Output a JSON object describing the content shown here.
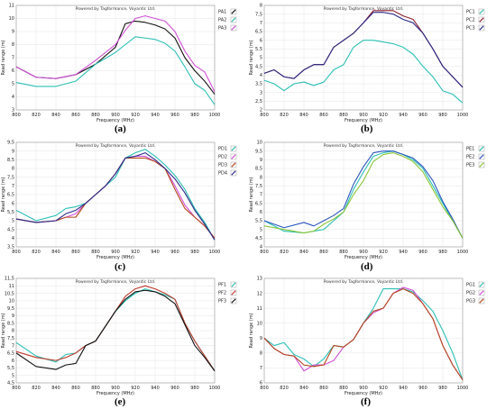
{
  "common": {
    "x_label": "Frequency (MHz)",
    "y_label": "Read range (m)",
    "note": "Powered by Tagformance, Voyantic Ltd."
  },
  "chart_data": [
    {
      "type": "line",
      "caption": "(a)",
      "x": [
        800,
        820,
        840,
        860,
        880,
        900,
        910,
        920,
        930,
        940,
        950,
        960,
        970,
        980,
        990,
        1000
      ],
      "xlim": [
        800,
        1000
      ],
      "ylim": [
        3,
        11
      ],
      "yticks": [
        3,
        4,
        5,
        6,
        7,
        8,
        9,
        10,
        11
      ],
      "series": [
        {
          "name": "PA1",
          "color": "#111111",
          "values": [
            6.3,
            5.5,
            5.4,
            5.7,
            6.5,
            7.8,
            9.6,
            9.8,
            9.7,
            9.5,
            9.2,
            8.5,
            7.0,
            6.0,
            5.2,
            4.2
          ]
        },
        {
          "name": "PA2",
          "color": "#2bbfb5",
          "values": [
            5.1,
            4.8,
            4.8,
            5.2,
            6.5,
            7.4,
            8.0,
            8.6,
            8.5,
            8.4,
            8.1,
            7.5,
            6.3,
            5.0,
            4.5,
            3.4
          ]
        },
        {
          "name": "PA3",
          "color": "#d04fd6",
          "values": [
            6.3,
            5.5,
            5.4,
            5.7,
            6.8,
            8.0,
            9.1,
            10.0,
            10.2,
            10.0,
            9.8,
            9.0,
            7.5,
            6.4,
            5.9,
            4.4
          ]
        }
      ]
    },
    {
      "type": "line",
      "caption": "(b)",
      "x": [
        800,
        810,
        820,
        830,
        840,
        850,
        860,
        870,
        880,
        890,
        900,
        910,
        920,
        930,
        940,
        950,
        960,
        970,
        980,
        990,
        1000
      ],
      "xlim": [
        800,
        1000
      ],
      "ylim": [
        2,
        8
      ],
      "yticks": [
        2,
        2.5,
        3,
        3.5,
        4,
        4.5,
        5,
        5.5,
        6,
        6.5,
        7,
        7.5,
        8
      ],
      "series": [
        {
          "name": "PC1",
          "color": "#2bbfb5",
          "values": [
            3.7,
            3.5,
            3.1,
            3.5,
            3.6,
            3.4,
            3.6,
            4.3,
            4.6,
            5.6,
            6.0,
            6.0,
            5.9,
            5.8,
            5.6,
            5.2,
            4.5,
            3.9,
            3.1,
            2.9,
            2.4
          ]
        },
        {
          "name": "PC2",
          "color": "#8b1c2c",
          "values": [
            4.1,
            4.3,
            3.9,
            3.8,
            4.3,
            4.6,
            4.6,
            5.6,
            6.0,
            6.4,
            7.0,
            7.7,
            7.7,
            7.7,
            7.4,
            7.2,
            6.4,
            5.5,
            4.5,
            3.9,
            3.3
          ]
        },
        {
          "name": "PC3",
          "color": "#2a2a8a",
          "values": [
            4.1,
            4.3,
            3.9,
            3.8,
            4.3,
            4.6,
            4.6,
            5.6,
            6.0,
            6.4,
            7.0,
            7.6,
            7.6,
            7.5,
            7.2,
            7.0,
            6.4,
            5.5,
            4.5,
            3.9,
            3.3
          ]
        }
      ]
    },
    {
      "type": "line",
      "caption": "(c)",
      "x": [
        800,
        820,
        840,
        850,
        860,
        870,
        880,
        890,
        900,
        910,
        920,
        930,
        940,
        950,
        960,
        970,
        980,
        990,
        1000
      ],
      "xlim": [
        800,
        1000
      ],
      "ylim": [
        3.5,
        9.5
      ],
      "yticks": [
        3.5,
        4,
        4.5,
        5,
        5.5,
        6,
        6.5,
        7,
        7.5,
        8,
        8.5,
        9,
        9.5
      ],
      "series": [
        {
          "name": "PD1",
          "color": "#2bbfb5",
          "values": [
            5.6,
            5.0,
            5.3,
            5.7,
            5.8,
            6.0,
            6.5,
            7.0,
            7.5,
            8.6,
            8.9,
            9.1,
            8.7,
            8.2,
            7.6,
            6.8,
            5.7,
            4.9,
            3.9
          ]
        },
        {
          "name": "PD2",
          "color": "#d04fd6",
          "values": [
            5.1,
            4.9,
            5.0,
            5.2,
            5.4,
            6.0,
            6.5,
            7.0,
            7.7,
            8.6,
            8.7,
            8.7,
            8.4,
            8.0,
            7.0,
            5.9,
            5.2,
            4.7,
            4.0
          ]
        },
        {
          "name": "PD3",
          "color": "#b5471a",
          "values": [
            5.1,
            4.9,
            5.0,
            5.2,
            5.2,
            6.0,
            6.5,
            7.0,
            7.7,
            8.6,
            8.6,
            8.6,
            8.4,
            8.0,
            6.8,
            5.7,
            5.2,
            4.7,
            4.0
          ]
        },
        {
          "name": "PD4",
          "color": "#2a2a8a",
          "values": [
            5.1,
            4.9,
            5.0,
            5.4,
            5.6,
            6.0,
            6.5,
            7.0,
            7.7,
            8.6,
            8.7,
            8.9,
            8.5,
            8.0,
            7.4,
            6.6,
            5.6,
            4.8,
            3.9
          ]
        }
      ]
    },
    {
      "type": "line",
      "caption": "(d)",
      "x": [
        800,
        820,
        840,
        850,
        860,
        870,
        880,
        890,
        900,
        910,
        920,
        930,
        940,
        950,
        960,
        970,
        980,
        990,
        1000
      ],
      "xlim": [
        800,
        1000
      ],
      "ylim": [
        4,
        10
      ],
      "yticks": [
        4,
        4.5,
        5,
        5.5,
        6,
        6.5,
        7,
        7.5,
        8,
        8.5,
        9,
        9.5,
        10
      ],
      "series": [
        {
          "name": "PE1",
          "color": "#2bbfb5",
          "values": [
            5.5,
            4.9,
            4.8,
            4.9,
            5.0,
            5.5,
            6.0,
            7.3,
            8.3,
            9.2,
            9.4,
            9.5,
            9.3,
            9.0,
            8.5,
            7.5,
            6.5,
            5.5,
            4.5
          ]
        },
        {
          "name": "PE2",
          "color": "#2a55c0",
          "values": [
            5.5,
            5.1,
            5.4,
            5.2,
            5.5,
            5.8,
            6.2,
            7.6,
            8.6,
            9.4,
            9.5,
            9.5,
            9.3,
            9.1,
            8.6,
            7.8,
            6.6,
            5.6,
            4.5
          ]
        },
        {
          "name": "PE3",
          "color": "#8bc53a",
          "values": [
            5.2,
            5.0,
            4.8,
            4.9,
            5.3,
            5.6,
            6.0,
            7.0,
            7.8,
            8.9,
            9.3,
            9.4,
            9.2,
            8.9,
            8.3,
            7.3,
            6.3,
            5.5,
            4.5
          ]
        }
      ]
    },
    {
      "type": "line",
      "caption": "(e)",
      "x": [
        800,
        820,
        840,
        850,
        860,
        870,
        880,
        890,
        900,
        910,
        920,
        930,
        940,
        950,
        960,
        970,
        980,
        990,
        1000
      ],
      "xlim": [
        800,
        1000
      ],
      "ylim": [
        4.5,
        11.5
      ],
      "yticks": [
        4.5,
        5,
        5.5,
        6,
        6.5,
        7,
        7.5,
        8,
        8.5,
        9,
        9.5,
        10,
        10.5,
        11,
        11.5
      ],
      "series": [
        {
          "name": "PF1",
          "color": "#2bbfb5",
          "values": [
            7.2,
            6.3,
            5.9,
            6.4,
            6.5,
            7.0,
            7.3,
            8.3,
            9.3,
            10.0,
            10.5,
            10.8,
            10.6,
            10.4,
            10.1,
            8.5,
            7.3,
            6.3,
            5.3
          ]
        },
        {
          "name": "PF2",
          "color": "#c0392b",
          "values": [
            6.6,
            6.2,
            6.0,
            6.2,
            6.5,
            7.0,
            7.3,
            8.3,
            9.3,
            10.3,
            10.8,
            11.0,
            10.8,
            10.5,
            10.1,
            8.5,
            7.3,
            6.3,
            5.3
          ]
        },
        {
          "name": "PF3",
          "color": "#111111",
          "values": [
            6.5,
            5.6,
            5.4,
            5.7,
            5.8,
            7.0,
            7.3,
            8.3,
            9.3,
            10.1,
            10.6,
            10.7,
            10.6,
            10.3,
            9.8,
            8.4,
            7.0,
            6.2,
            5.3
          ]
        }
      ]
    },
    {
      "type": "line",
      "caption": "(f)",
      "x": [
        800,
        810,
        820,
        830,
        840,
        850,
        860,
        870,
        880,
        890,
        900,
        910,
        920,
        930,
        940,
        950,
        960,
        970,
        980,
        990,
        1000
      ],
      "xlim": [
        800,
        1000
      ],
      "ylim": [
        6,
        13
      ],
      "yticks": [
        6,
        7,
        8,
        9,
        10,
        11,
        12,
        13
      ],
      "series": [
        {
          "name": "PG1",
          "color": "#2bbfb5",
          "values": [
            9.0,
            8.5,
            8.7,
            7.9,
            7.6,
            7.1,
            7.6,
            8.5,
            8.4,
            8.9,
            10.0,
            11.0,
            12.3,
            12.3,
            12.3,
            12.1,
            11.5,
            10.8,
            9.5,
            8.0,
            6.2
          ]
        },
        {
          "name": "PG2",
          "color": "#d04fd6",
          "values": [
            9.0,
            8.3,
            7.9,
            7.8,
            6.8,
            7.2,
            7.2,
            7.5,
            8.4,
            8.9,
            10.0,
            10.7,
            11.0,
            12.0,
            12.4,
            12.2,
            11.3,
            10.3,
            8.5,
            7.2,
            6.2
          ]
        },
        {
          "name": "PG3",
          "color": "#b5471a",
          "values": [
            9.0,
            8.3,
            7.9,
            7.8,
            7.2,
            7.1,
            7.2,
            8.5,
            8.4,
            8.9,
            10.0,
            10.8,
            11.0,
            12.0,
            12.3,
            12.0,
            11.3,
            10.3,
            8.5,
            7.2,
            6.2
          ]
        }
      ]
    }
  ]
}
